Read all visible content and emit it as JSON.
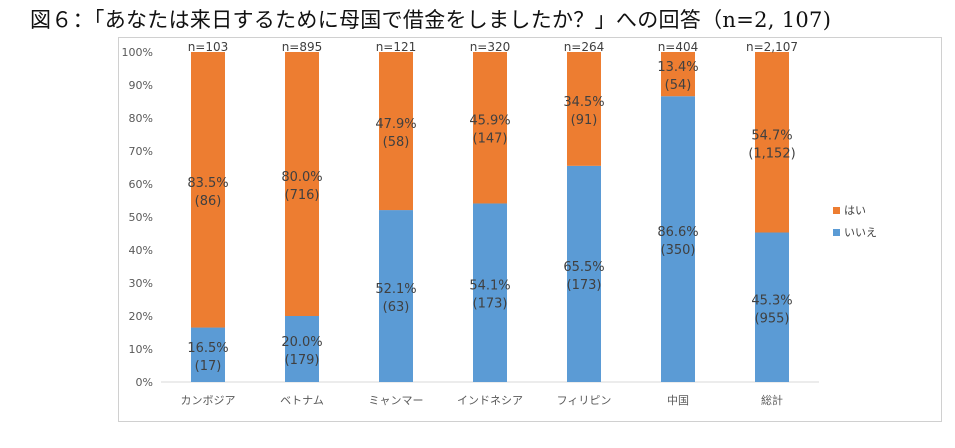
{
  "title": "図６：「あなたは来日するために母国で借金をしましたか？」への回答（n=2, 107)",
  "chart_data": {
    "type": "bar",
    "stacked": true,
    "percent_stacked": true,
    "categories": [
      "カンボジア",
      "ベトナム",
      "ミャンマー",
      "インドネシア",
      "フィリピン",
      "中国",
      "総計"
    ],
    "n_labels": [
      "n=103",
      "n=895",
      "n=121",
      "n=320",
      "n=264",
      "n=404",
      "n=2,107"
    ],
    "series": [
      {
        "name": "いいえ",
        "color": "#5b9bd5",
        "values": [
          16.5,
          20.0,
          52.1,
          54.1,
          65.5,
          86.6,
          45.3
        ],
        "pct_labels": [
          "16.5%",
          "20.0%",
          "52.1%",
          "54.1%",
          "65.5%",
          "86.6%",
          "45.3%"
        ],
        "count_labels": [
          "(17)",
          "(179)",
          "(63)",
          "(173)",
          "(173)",
          "(350)",
          "(955)"
        ]
      },
      {
        "name": "はい",
        "color": "#ed7d31",
        "values": [
          83.5,
          80.0,
          47.9,
          45.9,
          34.5,
          13.4,
          54.7
        ],
        "pct_labels": [
          "83.5%",
          "80.0%",
          "47.9%",
          "45.9%",
          "34.5%",
          "13.4%",
          "54.7%"
        ],
        "count_labels": [
          "(86)",
          "(716)",
          "(58)",
          "(147)",
          "(91)",
          "(54)",
          "(1,152)"
        ]
      }
    ],
    "y_ticks": [
      "0%",
      "10%",
      "20%",
      "30%",
      "40%",
      "50%",
      "60%",
      "70%",
      "80%",
      "90%",
      "100%"
    ],
    "ylim": [
      0,
      100
    ],
    "grid": false,
    "legend_position": "right",
    "legend": [
      {
        "name": "はい",
        "color": "#ed7d31"
      },
      {
        "name": "いいえ",
        "color": "#5b9bd5"
      }
    ]
  }
}
